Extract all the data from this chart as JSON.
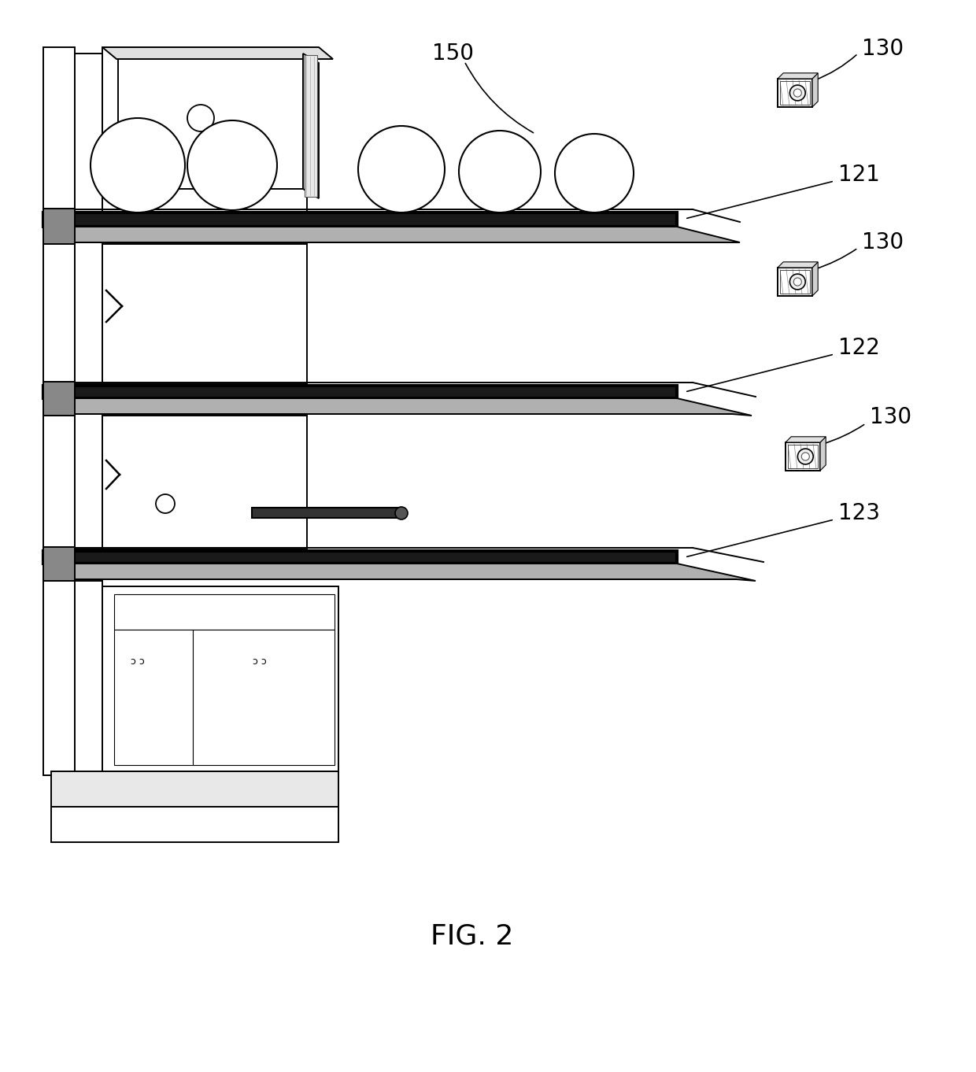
{
  "bg_color": "#ffffff",
  "fig_caption": "FIG. 2",
  "labels": [
    "150",
    "130",
    "121",
    "130",
    "122",
    "130",
    "123"
  ],
  "lw_thin": 0.8,
  "lw_med": 1.4,
  "lw_thick": 3.0,
  "gray_hatch": "#aaaaaa",
  "dark_fill": "#1a1a1a",
  "mid_gray": "#888888",
  "light_gray": "#cccccc",
  "shelf_color": "#2a2a2a"
}
